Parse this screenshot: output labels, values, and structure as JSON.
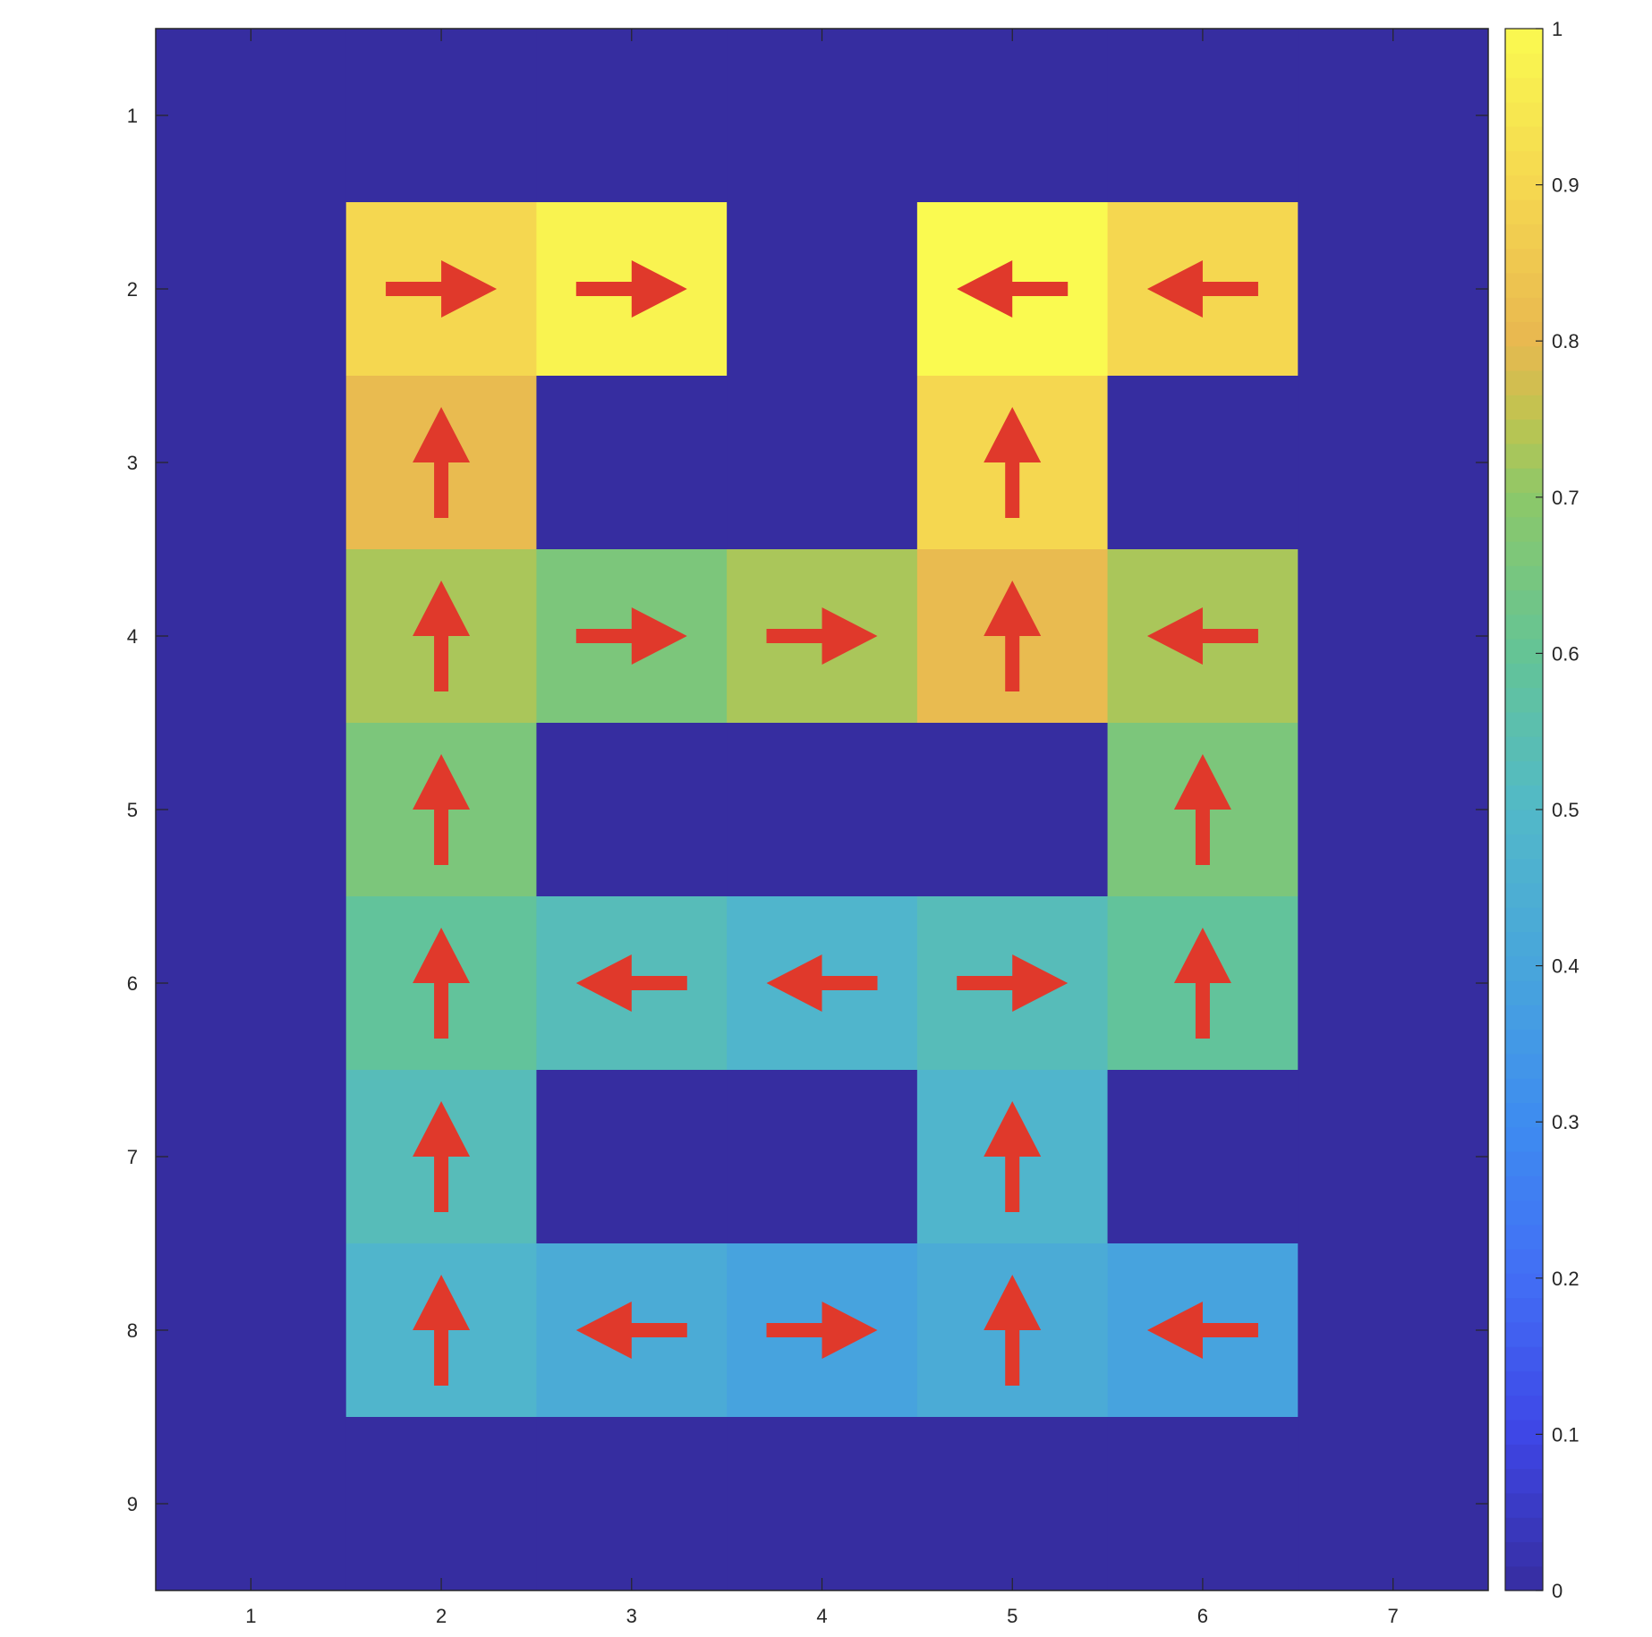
{
  "chart_data": {
    "type": "heatmap",
    "title": "",
    "xlabel": "",
    "ylabel": "",
    "x_ticks": [
      "1",
      "2",
      "3",
      "4",
      "5",
      "6",
      "7"
    ],
    "y_ticks": [
      "1",
      "2",
      "3",
      "4",
      "5",
      "6",
      "7",
      "8",
      "9"
    ],
    "xlim": [
      0.5,
      7.5
    ],
    "ylim": [
      0.5,
      9.5
    ],
    "y_direction": "reverse",
    "grid": false,
    "colormap": "parula",
    "clim": [
      0,
      1
    ],
    "colorbar": {
      "location": "right",
      "ticks": [
        "0",
        "0.1",
        "0.2",
        "0.3",
        "0.4",
        "0.5",
        "0.6",
        "0.7",
        "0.8",
        "0.9",
        "1"
      ]
    },
    "values": [
      [
        0,
        0,
        0,
        0,
        0,
        0,
        0
      ],
      [
        0,
        0.9,
        0.98,
        0,
        1.0,
        0.9,
        0
      ],
      [
        0,
        0.81,
        0,
        0,
        0.9,
        0,
        0
      ],
      [
        0,
        0.73,
        0.66,
        0.73,
        0.81,
        0.73,
        0
      ],
      [
        0,
        0.66,
        0,
        0,
        0,
        0.66,
        0
      ],
      [
        0,
        0.59,
        0.53,
        0.48,
        0.53,
        0.59,
        0
      ],
      [
        0,
        0.53,
        0,
        0,
        0.48,
        0,
        0
      ],
      [
        0,
        0.48,
        0.43,
        0.39,
        0.43,
        0.39,
        0
      ],
      [
        0,
        0,
        0,
        0,
        0,
        0,
        0
      ]
    ],
    "arrows": [
      [
        null,
        null,
        null,
        null,
        null,
        null,
        null
      ],
      [
        null,
        "right",
        "right",
        null,
        "left",
        "left",
        null
      ],
      [
        null,
        "up",
        null,
        null,
        "up",
        null,
        null
      ],
      [
        null,
        "up",
        "right",
        "right",
        "up",
        "left",
        null
      ],
      [
        null,
        "up",
        null,
        null,
        null,
        "up",
        null
      ],
      [
        null,
        "up",
        "left",
        "left",
        "right",
        "up",
        null
      ],
      [
        null,
        "up",
        null,
        null,
        "up",
        null,
        null
      ],
      [
        null,
        "up",
        "left",
        "right",
        "up",
        "left",
        null
      ],
      [
        null,
        null,
        null,
        null,
        null,
        null,
        null
      ]
    ],
    "arrow_color": "#e0392b"
  }
}
